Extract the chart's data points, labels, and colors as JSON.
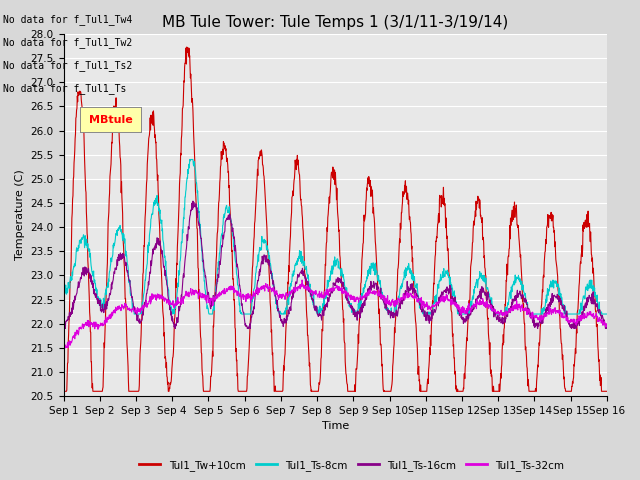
{
  "title": "MB Tule Tower: Tule Temps 1 (3/1/11-3/19/14)",
  "xlabel": "Time",
  "ylabel": "Temperature (C)",
  "ylim": [
    20.5,
    28.0
  ],
  "x_tick_labels": [
    "Sep 1",
    "Sep 2",
    "Sep 3",
    "Sep 4",
    "Sep 5",
    "Sep 6",
    "Sep 7",
    "Sep 8",
    "Sep 9",
    "Sep 10",
    "Sep 11",
    "Sep 12",
    "Sep 13",
    "Sep 14",
    "Sep 15",
    "Sep 16"
  ],
  "colors": {
    "Tul1_Tw+10cm": "#cc0000",
    "Tul1_Ts-8cm": "#00cccc",
    "Tul1_Ts-16cm": "#880088",
    "Tul1_Ts-32cm": "#dd00dd"
  },
  "no_data_texts": [
    "No data for f_Tul1_Tw4",
    "No data for f_Tul1_Tw2",
    "No data for f_Tul1_Ts2",
    "No data for f_Tul1_Ts"
  ],
  "tooltip_text": "MBtule",
  "background_color": "#d8d8d8",
  "plot_bg_color": "#e8e8e8",
  "grid_color": "#ffffff",
  "title_fontsize": 11,
  "axis_fontsize": 8,
  "tick_fontsize": 7.5
}
